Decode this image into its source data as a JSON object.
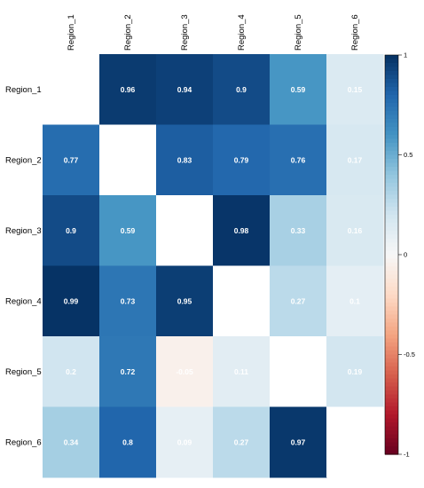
{
  "chart_data": {
    "type": "heatmap",
    "rows": [
      "Region_1",
      "Region_2",
      "Region_3",
      "Region_4",
      "Region_5",
      "Region_6"
    ],
    "columns": [
      "Region_1",
      "Region_2",
      "Region_3",
      "Region_4",
      "Region_5",
      "Region_6"
    ],
    "values": [
      [
        null,
        0.96,
        0.94,
        0.9,
        0.59,
        0.15
      ],
      [
        0.77,
        null,
        0.83,
        0.79,
        0.76,
        0.17
      ],
      [
        0.9,
        0.59,
        null,
        0.98,
        0.33,
        0.16
      ],
      [
        0.99,
        0.73,
        0.95,
        null,
        0.27,
        0.1
      ],
      [
        0.2,
        0.72,
        -0.05,
        0.11,
        null,
        0.19
      ],
      [
        0.34,
        0.8,
        0.09,
        0.27,
        0.97,
        null
      ]
    ],
    "labels": [
      [
        null,
        "0.96",
        "0.94",
        "0.9",
        "0.59",
        "0.15"
      ],
      [
        "0.77",
        null,
        "0.83",
        "0.79",
        "0.76",
        "0.17"
      ],
      [
        "0.9",
        "0.59",
        null,
        "0.98",
        "0.33",
        "0.16"
      ],
      [
        "0.99",
        "0.73",
        "0.95",
        null,
        "0.27",
        "0.1"
      ],
      [
        "0.2",
        "0.72",
        "-0.05",
        "0.11",
        null,
        "0.19"
      ],
      [
        "0.34",
        "0.8",
        "0.09",
        "0.27",
        "0.97",
        null
      ]
    ],
    "colorbar": {
      "range": [
        -1,
        1
      ],
      "ticks": [
        1,
        0.5,
        0,
        -0.5,
        -1
      ],
      "tick_labels": [
        "1",
        "0.5",
        "0",
        "-0.5",
        "-1"
      ]
    },
    "colors": {
      "negative": "#67001f",
      "neutral": "#f7f7f7",
      "positive": "#053061",
      "label_light": "#ffffff"
    },
    "legend_position": "right"
  }
}
